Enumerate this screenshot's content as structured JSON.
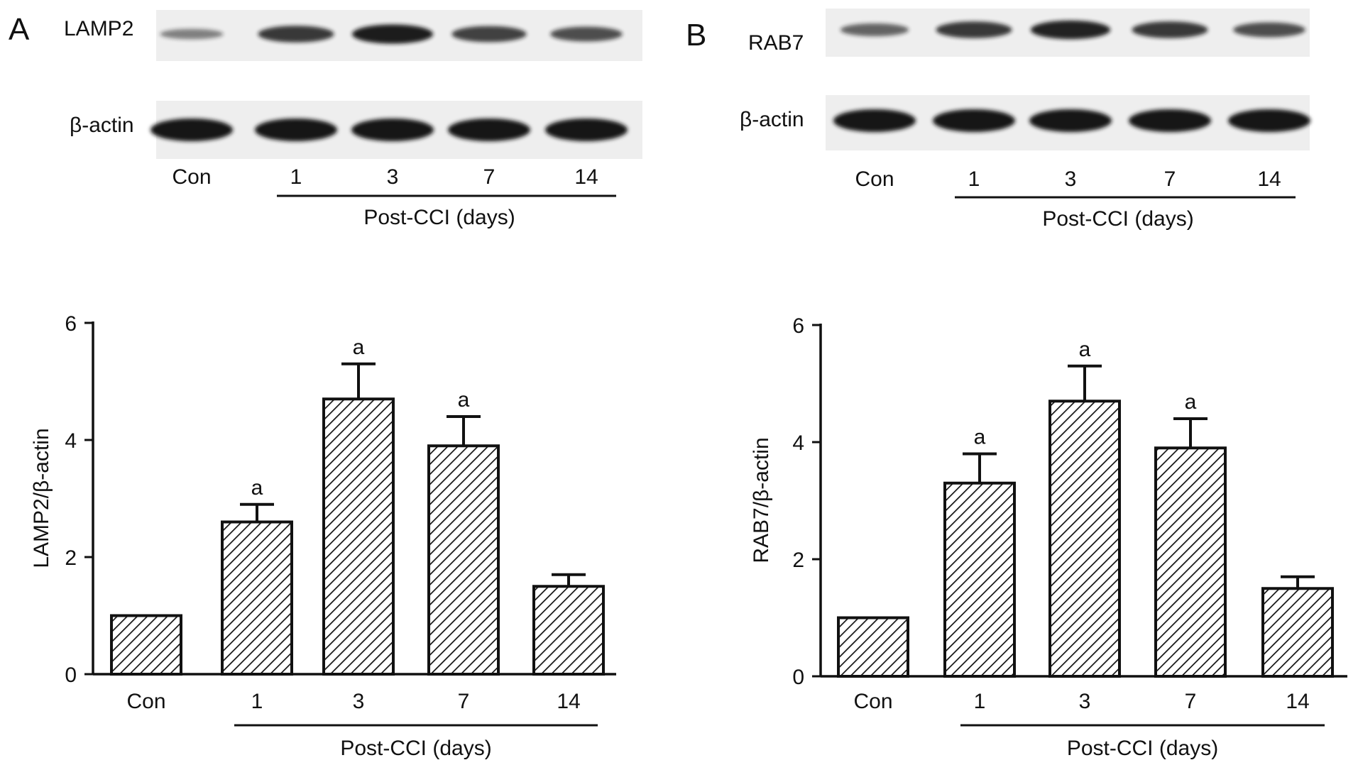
{
  "panels": [
    {
      "letter": "A",
      "protein": "LAMP2",
      "loading_control": "β-actin",
      "lanes": [
        "Con",
        "1",
        "3",
        "7",
        "14"
      ],
      "group_label": "Post-CCI (days)",
      "target_band_intensity": [
        0.25,
        0.75,
        0.95,
        0.7,
        0.6
      ],
      "actin_band_intensity": [
        1.0,
        1.0,
        1.0,
        1.0,
        1.0
      ]
    },
    {
      "letter": "B",
      "protein": "RAB7",
      "loading_control": "β-actin",
      "lanes": [
        "Con",
        "1",
        "3",
        "7",
        "14"
      ],
      "group_label": "Post-CCI (days)",
      "target_band_intensity": [
        0.45,
        0.75,
        0.9,
        0.75,
        0.6
      ],
      "actin_band_intensity": [
        1.0,
        1.0,
        1.0,
        1.0,
        1.0
      ]
    }
  ],
  "chart_data": [
    {
      "type": "bar",
      "categories": [
        "Con",
        "1",
        "3",
        "7",
        "14"
      ],
      "values": [
        1.0,
        2.6,
        4.7,
        3.9,
        1.5
      ],
      "errors": [
        0.0,
        0.3,
        0.6,
        0.5,
        0.2
      ],
      "annotations": [
        "",
        "a",
        "a",
        "a",
        ""
      ],
      "ylabel": "LAMP2/β-actin",
      "xlabel": "Post-CCI (days)",
      "ylim": [
        0,
        6
      ],
      "yticks": [
        0,
        2,
        4,
        6
      ],
      "fill": "hatched",
      "grid": false
    },
    {
      "type": "bar",
      "categories": [
        "Con",
        "1",
        "3",
        "7",
        "14"
      ],
      "values": [
        1.0,
        3.3,
        4.7,
        3.9,
        1.5
      ],
      "errors": [
        0.0,
        0.5,
        0.6,
        0.5,
        0.2
      ],
      "annotations": [
        "",
        "a",
        "a",
        "a",
        ""
      ],
      "ylabel": "RAB7/β-actin",
      "xlabel": "Post-CCI (days)",
      "ylim": [
        0,
        6
      ],
      "yticks": [
        0,
        2,
        4,
        6
      ],
      "fill": "hatched",
      "grid": false
    }
  ],
  "colors": {
    "ink": "#111111",
    "blot_background": "#eeeeee",
    "band": "#141414"
  }
}
